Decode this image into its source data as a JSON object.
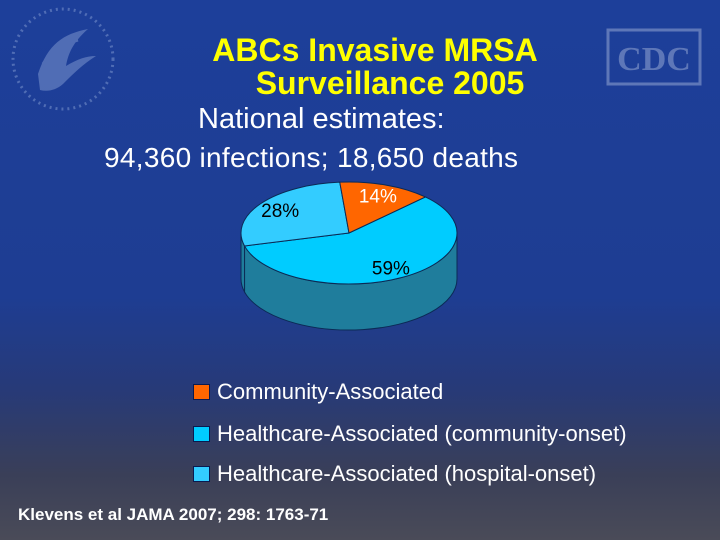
{
  "slide": {
    "title_line1": "ABCs Invasive MRSA",
    "title_line2": "Surveillance 2005",
    "subtitle_line1": "National estimates:",
    "subtitle_line2": "94,360 infections; 18,650 deaths",
    "citation": "Klevens et al JAMA 2007; 298: 1763-71",
    "logos": [
      "hhs-eagle-logo",
      "cdc-logo"
    ],
    "logo_text": "CDC"
  },
  "chart_data": {
    "type": "pie",
    "title": "",
    "slices": [
      {
        "name": "Healthcare-Associated (community-onset)",
        "value": 59,
        "label": "59%",
        "color": "#00ccff"
      },
      {
        "name": "Healthcare-Associated (hospital-onset)",
        "value": 28,
        "label": "28%",
        "color": "#33ccff"
      },
      {
        "name": "Community-Associated",
        "value": 14,
        "label": "14%",
        "color": "#ff6600"
      }
    ],
    "legend": [
      {
        "label": "Community-Associated",
        "color": "#ff6600"
      },
      {
        "label": "Healthcare-Associated (community-onset)",
        "color": "#00ccff"
      },
      {
        "label": "Healthcare-Associated (hospital-onset)",
        "color": "#33ccff"
      }
    ],
    "legend_position": "bottom",
    "style": "3d"
  }
}
